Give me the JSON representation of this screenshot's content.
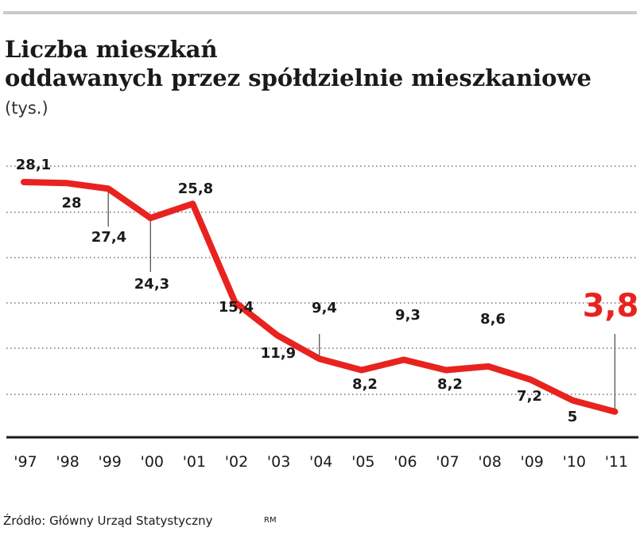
{
  "header": {
    "title_line1": "Liczba mieszkań",
    "title_line2": "oddawanych przez spółdzielnie mieszkaniowe",
    "unit": "(tys.)"
  },
  "footer": {
    "source": "Źródło: Główny Urząd Statystyczny",
    "credit": "RM"
  },
  "colors": {
    "line": "#e8231f",
    "text": "#1a1a1a",
    "grid": "#555555",
    "highlight": "#e8231f"
  },
  "chart_data": {
    "type": "line",
    "title": "Liczba mieszkań oddawanych przez spółdzielnie mieszkaniowe",
    "subtitle": "(tys.)",
    "xlabel": "",
    "ylabel": "",
    "grid": true,
    "categories": [
      "'97",
      "'98",
      "'99",
      "'00",
      "'01",
      "'02",
      "'03",
      "'04",
      "'05",
      "'06",
      "'07",
      "'08",
      "'09",
      "'10",
      "'11"
    ],
    "values": [
      28.1,
      28,
      27.4,
      24.3,
      25.8,
      15.4,
      11.9,
      9.4,
      8.2,
      9.3,
      8.2,
      8.6,
      7.2,
      5,
      3.8
    ],
    "data_labels": [
      "28,1",
      "28",
      "27,4",
      "24,3",
      "25,8",
      "15,4",
      "11,9",
      "9,4",
      "8,2",
      "9,3",
      "8,2",
      "8,6",
      "7,2",
      "5",
      "3,8"
    ],
    "highlight_index": 14
  }
}
